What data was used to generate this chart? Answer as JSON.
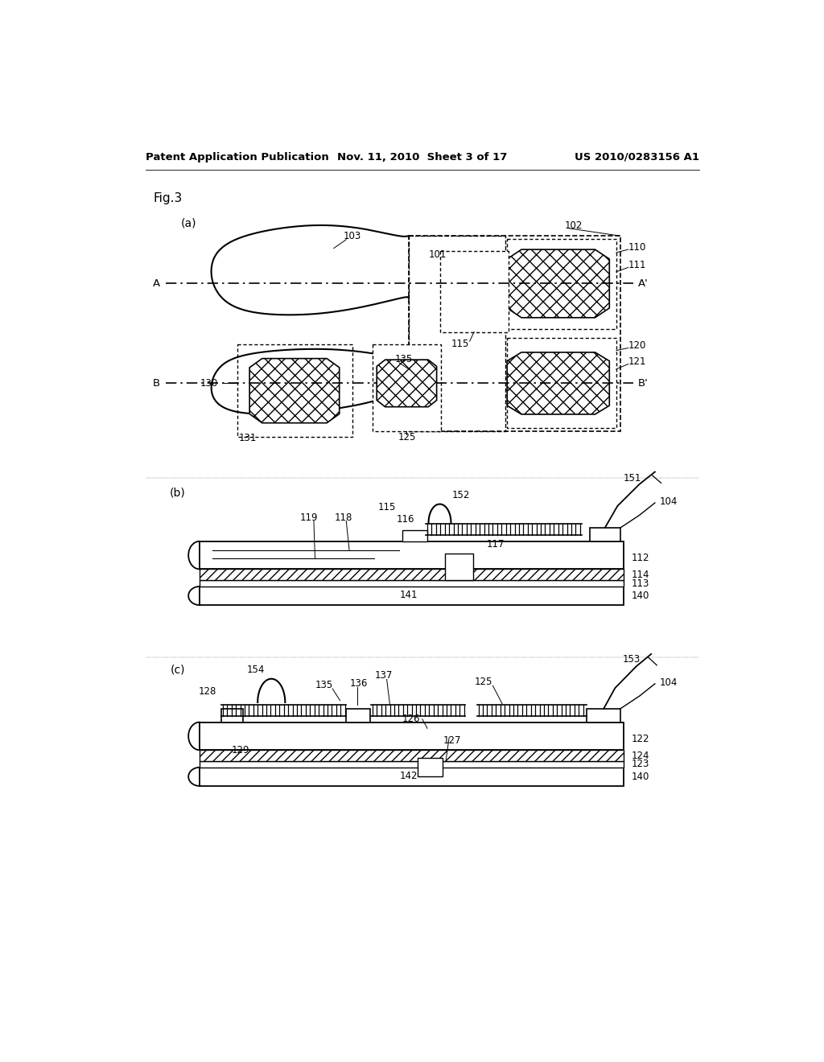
{
  "title_left": "Patent Application Publication",
  "title_mid": "Nov. 11, 2010  Sheet 3 of 17",
  "title_right": "US 2010/0283156 A1",
  "bg_color": "#ffffff",
  "fs": 8.5,
  "hfs": 9.5
}
